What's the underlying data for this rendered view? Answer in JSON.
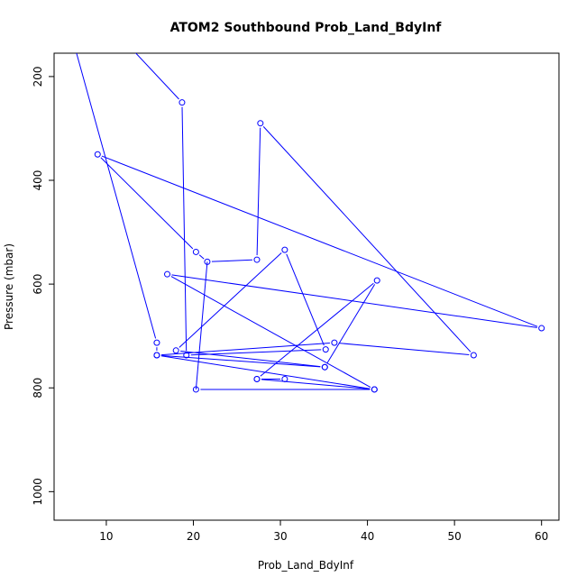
{
  "chart_data": {
    "type": "line",
    "title": "ATOM2 Southbound Prob_Land_BdyInf",
    "xlabel": "Prob_Land_BdyInf",
    "ylabel": "Pressure (mbar)",
    "xlim": [
      4,
      62
    ],
    "ylim": [
      1055,
      155
    ],
    "y_reversed": true,
    "x_ticks": [
      10,
      20,
      30,
      40,
      50,
      60
    ],
    "y_ticks": [
      200,
      400,
      600,
      800,
      1000
    ],
    "series_color": "#0000ff",
    "series": [
      {
        "markers": "open-circle",
        "x": [
          6.0,
          15.8,
          15.8,
          40.8,
          17.0,
          60.0,
          9.0,
          20.3,
          21.6,
          27.3,
          27.7,
          52.2,
          36.2,
          15.8,
          35.1,
          18.0,
          30.5,
          35.2,
          19.2,
          18.7,
          12.0
        ],
        "y": [
          120,
          713,
          737,
          803,
          581,
          685,
          350,
          538,
          557,
          553,
          290,
          737,
          713,
          737,
          760,
          728,
          534,
          726,
          737,
          250,
          130
        ]
      },
      {
        "markers": "open-circle",
        "x": [
          20.3,
          40.8,
          27.3,
          30.5,
          27.3,
          41.1,
          35.1
        ],
        "y": [
          803,
          803,
          783,
          783,
          783,
          593,
          760
        ]
      }
    ],
    "connectors": [
      {
        "x": [
          21.6,
          20.3
        ],
        "y": [
          557,
          803
        ]
      }
    ]
  }
}
